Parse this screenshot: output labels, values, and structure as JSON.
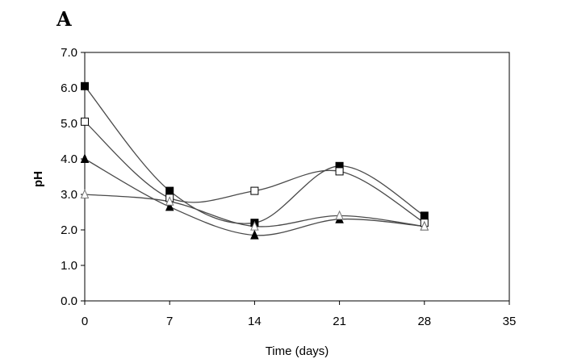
{
  "chart_data": {
    "type": "line",
    "panel_label": "A",
    "title": "",
    "xlabel": "Time (days)",
    "ylabel": "pH",
    "xlim": [
      0,
      35
    ],
    "ylim": [
      0.0,
      7.0
    ],
    "xticks": [
      0,
      7,
      14,
      21,
      28,
      35
    ],
    "xtick_labels": [
      "0",
      "7",
      "14",
      "21",
      "28",
      "35"
    ],
    "yticks": [
      0.0,
      1.0,
      2.0,
      3.0,
      4.0,
      5.0,
      6.0,
      7.0
    ],
    "ytick_labels": [
      "0.0",
      "1.0",
      "2.0",
      "3.0",
      "4.0",
      "5.0",
      "6.0",
      "7.0"
    ],
    "grid": false,
    "legend": "none",
    "line_color": "#4a4a4a",
    "marker_color": "#000000",
    "x": [
      0,
      7,
      14,
      21,
      28
    ],
    "series": [
      {
        "name": "filled-square",
        "marker": "square-filled",
        "values": [
          6.05,
          3.1,
          2.2,
          3.8,
          2.4
        ]
      },
      {
        "name": "open-square",
        "marker": "square-open",
        "values": [
          5.05,
          2.9,
          3.1,
          3.65,
          2.2
        ]
      },
      {
        "name": "filled-triangle",
        "marker": "triangle-filled",
        "values": [
          4.0,
          2.65,
          1.85,
          2.3,
          2.1
        ]
      },
      {
        "name": "open-triangle",
        "marker": "triangle-open",
        "values": [
          3.0,
          2.8,
          2.1,
          2.4,
          2.1
        ]
      }
    ]
  }
}
